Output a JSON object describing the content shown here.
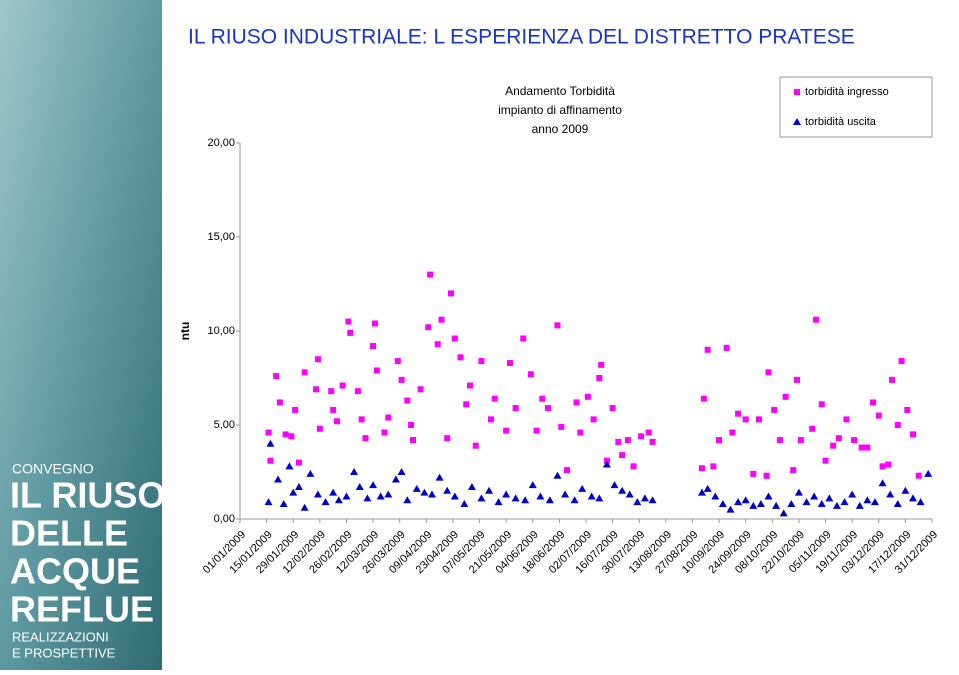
{
  "page_title": "IL RIUSO INDUSTRIALE: L ESPERIENZA DEL DISTRETTO PRATESE",
  "sidebar": {
    "lines": [
      "CONVEGNO",
      "IL RIUSO",
      "DELLE",
      "ACQUE",
      "REFLUE",
      "REALIZZAZIONI",
      "E PROSPETTIVE"
    ]
  },
  "chart_data": {
    "type": "scatter",
    "title": [
      "Andamento Torbidità",
      "impianto di affinamento",
      "anno 2009"
    ],
    "y_label": "ntu",
    "xlim": [
      0,
      364
    ],
    "xticks": [
      {
        "value": 0,
        "label": "01/01/2009"
      },
      {
        "value": 14,
        "label": "15/01/2009"
      },
      {
        "value": 28,
        "label": "29/01/2009"
      },
      {
        "value": 42,
        "label": "12/02/2009"
      },
      {
        "value": 56,
        "label": "26/02/2009"
      },
      {
        "value": 70,
        "label": "12/03/2009"
      },
      {
        "value": 84,
        "label": "26/03/2009"
      },
      {
        "value": 98,
        "label": "09/04/2009"
      },
      {
        "value": 112,
        "label": "23/04/2009"
      },
      {
        "value": 126,
        "label": "07/05/2009"
      },
      {
        "value": 140,
        "label": "21/05/2009"
      },
      {
        "value": 154,
        "label": "04/06/2009"
      },
      {
        "value": 168,
        "label": "18/06/2009"
      },
      {
        "value": 182,
        "label": "02/07/2009"
      },
      {
        "value": 196,
        "label": "16/07/2009"
      },
      {
        "value": 210,
        "label": "30/07/2009"
      },
      {
        "value": 224,
        "label": "13/08/2009"
      },
      {
        "value": 238,
        "label": "27/08/2009"
      },
      {
        "value": 252,
        "label": "10/09/2009"
      },
      {
        "value": 266,
        "label": "24/09/2009"
      },
      {
        "value": 280,
        "label": "08/10/2009"
      },
      {
        "value": 294,
        "label": "22/10/2009"
      },
      {
        "value": 308,
        "label": "05/11/2009"
      },
      {
        "value": 322,
        "label": "19/11/2009"
      },
      {
        "value": 336,
        "label": "03/12/2009"
      },
      {
        "value": 350,
        "label": "17/12/2009"
      },
      {
        "value": 364,
        "label": "31/12/2009"
      }
    ],
    "ylim": [
      0,
      20
    ],
    "yticks": [
      {
        "value": 0,
        "label": "0,00"
      },
      {
        "value": 5,
        "label": "5,00"
      },
      {
        "value": 10,
        "label": "10,00"
      },
      {
        "value": 15,
        "label": "15,00"
      },
      {
        "value": 20,
        "label": "20,00"
      }
    ],
    "legend": "top-right",
    "series": [
      {
        "name": "torbidità ingresso",
        "color": "#ff00ff",
        "marker": "square",
        "x": [
          15,
          16,
          19,
          21,
          24,
          27,
          29,
          31,
          34,
          40,
          41,
          42,
          48,
          49,
          51,
          54,
          57,
          58,
          62,
          64,
          66,
          70,
          71,
          72,
          76,
          78,
          83,
          85,
          88,
          90,
          91,
          95,
          99,
          100,
          104,
          106,
          109,
          111,
          113,
          116,
          119,
          121,
          124,
          127,
          132,
          134,
          140,
          142,
          145,
          149,
          153,
          156,
          159,
          162,
          167,
          169,
          172,
          177,
          179,
          183,
          186,
          189,
          190,
          193,
          196,
          199,
          201,
          204,
          207,
          211,
          215,
          217,
          243,
          244,
          246,
          249,
          252,
          256,
          259,
          262,
          266,
          270,
          273,
          277,
          278,
          281,
          284,
          287,
          291,
          293,
          295,
          301,
          303,
          306,
          308,
          312,
          315,
          319,
          323,
          327,
          330,
          333,
          336,
          338,
          341,
          343,
          346,
          348,
          351,
          354,
          357
        ],
        "values": [
          4.6,
          3.1,
          7.6,
          6.2,
          4.5,
          4.4,
          5.8,
          3.0,
          7.8,
          6.9,
          8.5,
          4.8,
          6.8,
          5.8,
          5.2,
          7.1,
          10.5,
          9.9,
          6.8,
          5.3,
          4.3,
          9.2,
          10.4,
          7.9,
          4.6,
          5.4,
          8.4,
          7.4,
          6.3,
          5.0,
          4.2,
          6.9,
          10.2,
          13.0,
          9.3,
          10.6,
          4.3,
          12.0,
          9.6,
          8.6,
          6.1,
          7.1,
          3.9,
          8.4,
          5.3,
          6.4,
          4.7,
          8.3,
          5.9,
          9.6,
          7.7,
          4.7,
          6.4,
          5.9,
          10.3,
          4.9,
          2.6,
          6.2,
          4.6,
          6.5,
          5.3,
          7.5,
          8.2,
          3.1,
          5.9,
          4.1,
          3.4,
          4.2,
          2.8,
          4.4,
          4.6,
          4.1,
          2.7,
          6.4,
          9.0,
          2.8,
          4.2,
          9.1,
          4.6,
          5.6,
          5.3,
          2.4,
          5.3,
          2.3,
          7.8,
          5.8,
          4.2,
          6.5,
          2.6,
          7.4,
          4.2,
          4.8,
          10.6,
          6.1,
          3.1,
          3.9,
          4.3,
          5.3,
          4.2,
          3.8,
          3.8,
          6.2,
          5.5,
          2.8,
          2.9,
          7.4,
          5.0,
          8.4,
          5.8,
          4.5,
          2.3
        ]
      },
      {
        "name": "torbidità uscita",
        "color": "#0000cc",
        "marker": "triangle",
        "x": [
          15,
          16,
          20,
          23,
          26,
          28,
          31,
          34,
          37,
          41,
          45,
          49,
          52,
          56,
          60,
          63,
          67,
          70,
          74,
          78,
          82,
          85,
          88,
          93,
          97,
          101,
          105,
          109,
          113,
          118,
          122,
          127,
          131,
          136,
          140,
          145,
          150,
          154,
          158,
          163,
          167,
          171,
          176,
          180,
          185,
          189,
          193,
          197,
          201,
          205,
          209,
          213,
          217,
          243,
          246,
          250,
          254,
          258,
          262,
          266,
          270,
          274,
          278,
          282,
          286,
          290,
          294,
          298,
          302,
          306,
          310,
          314,
          318,
          322,
          326,
          330,
          334,
          338,
          342,
          346,
          350,
          354,
          358,
          362
        ],
        "values": [
          0.9,
          4.0,
          2.1,
          0.8,
          2.8,
          1.4,
          1.7,
          0.6,
          2.4,
          1.3,
          0.9,
          1.4,
          1.0,
          1.2,
          2.5,
          1.7,
          1.1,
          1.8,
          1.2,
          1.3,
          2.1,
          2.5,
          1.0,
          1.6,
          1.4,
          1.3,
          2.2,
          1.5,
          1.2,
          0.8,
          1.7,
          1.1,
          1.5,
          0.9,
          1.3,
          1.1,
          1.0,
          1.8,
          1.2,
          1.0,
          2.3,
          1.3,
          1.0,
          1.6,
          1.2,
          1.1,
          2.9,
          1.8,
          1.5,
          1.3,
          0.9,
          1.1,
          1.0,
          1.4,
          1.6,
          1.2,
          0.8,
          0.5,
          0.9,
          1.0,
          0.7,
          0.8,
          1.2,
          0.7,
          0.3,
          0.8,
          1.4,
          0.9,
          1.2,
          0.8,
          1.1,
          0.7,
          0.9,
          1.3,
          0.7,
          1.0,
          0.9,
          1.9,
          1.3,
          0.8,
          1.5,
          1.1,
          0.9,
          2.4
        ]
      }
    ]
  }
}
